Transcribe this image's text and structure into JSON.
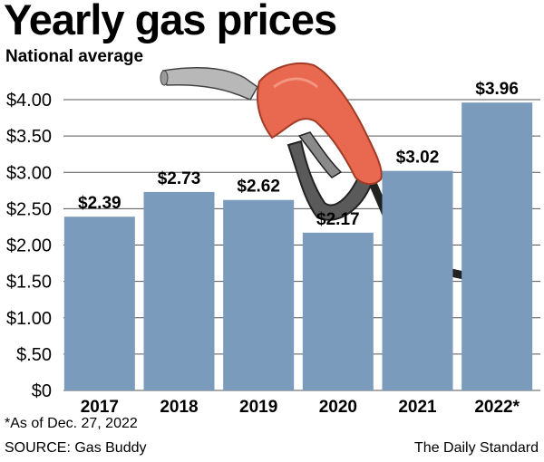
{
  "header": {
    "title": "Yearly gas prices",
    "subtitle": "National average"
  },
  "footer": {
    "footnote": "*As of Dec. 27, 2022",
    "source": "SOURCE: Gas Buddy",
    "credit": "The Daily Standard"
  },
  "chart_data": {
    "type": "bar",
    "title": "Yearly gas prices",
    "subtitle": "National average",
    "categories": [
      "2017",
      "2018",
      "2019",
      "2020",
      "2021",
      "2022*"
    ],
    "values": [
      2.39,
      2.73,
      2.62,
      2.17,
      3.02,
      3.96
    ],
    "data_labels": [
      "$2.39",
      "$2.73",
      "$2.62",
      "$2.17",
      "$3.02",
      "$3.96"
    ],
    "y_ticks": [
      0,
      0.5,
      1.0,
      1.5,
      2.0,
      2.5,
      3.0,
      3.5,
      4.0
    ],
    "y_tick_labels": [
      "$0",
      "$.50",
      "$1.00",
      "$1.50",
      "$2.00",
      "$2.50",
      "$3.00",
      "$3.50",
      "$4.00"
    ],
    "ylim": [
      0,
      4.0
    ],
    "grid": true,
    "legend": "none",
    "colors": {
      "bar": "#7b9bbd",
      "grid": "#555555",
      "nozzle": "#e8694f",
      "hose": "#222222"
    },
    "decoration": "gas-pump-nozzle"
  }
}
